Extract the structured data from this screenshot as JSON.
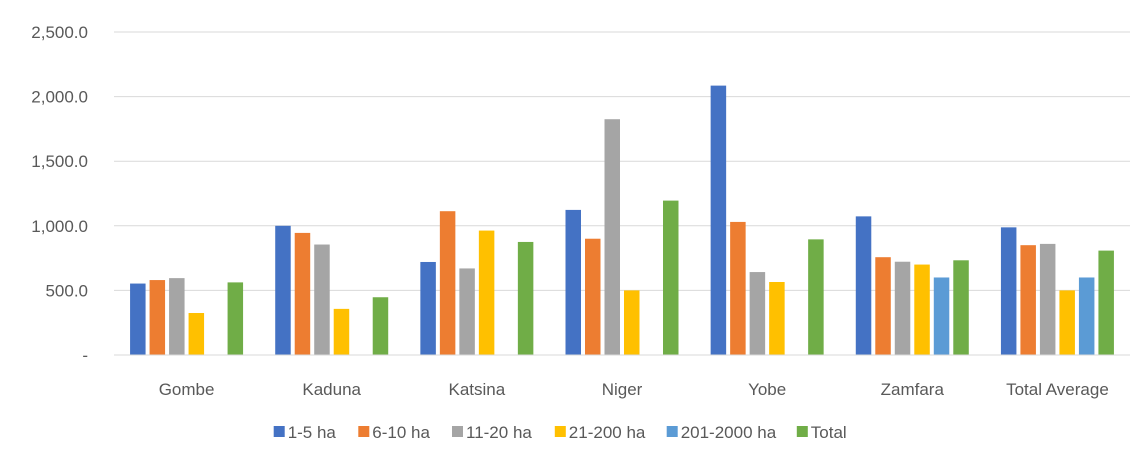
{
  "chart_data": {
    "type": "bar",
    "categories": [
      "Gombe",
      "Kaduna",
      "Katsina",
      "Niger",
      "Yobe",
      "Zamfara",
      "Total Average"
    ],
    "series": [
      {
        "name": "1-5 ha",
        "color": "#4472C4",
        "values": [
          553,
          1000,
          720,
          1123,
          2085,
          1073,
          988
        ]
      },
      {
        "name": "6-10 ha",
        "color": "#ED7D31",
        "values": [
          580,
          945,
          1113,
          900,
          1030,
          757,
          850
        ]
      },
      {
        "name": "11-20 ha",
        "color": "#A5A5A5",
        "values": [
          595,
          855,
          670,
          1825,
          642,
          722,
          860
        ]
      },
      {
        "name": "21-200 ha",
        "color": "#FFC000",
        "values": [
          325,
          357,
          963,
          500,
          565,
          700,
          500
        ]
      },
      {
        "name": "201-2000 ha",
        "color": "#5B9BD5",
        "values": [
          null,
          null,
          null,
          null,
          null,
          600,
          600
        ]
      },
      {
        "name": "Total",
        "color": "#70AD47",
        "values": [
          562,
          447,
          875,
          1195,
          895,
          733,
          808
        ]
      }
    ],
    "title": "",
    "xlabel": "",
    "ylabel": "",
    "ylim": [
      0,
      2500
    ],
    "yticks": [
      {
        "value": 0,
        "label": "-"
      },
      {
        "value": 500,
        "label": "500.0"
      },
      {
        "value": 1000,
        "label": "1,000.0"
      },
      {
        "value": 1500,
        "label": "1,500.0"
      },
      {
        "value": 2000,
        "label": "2,000.0"
      },
      {
        "value": 2500,
        "label": "2,500.0"
      }
    ],
    "grid": true,
    "legend_position": "bottom"
  }
}
